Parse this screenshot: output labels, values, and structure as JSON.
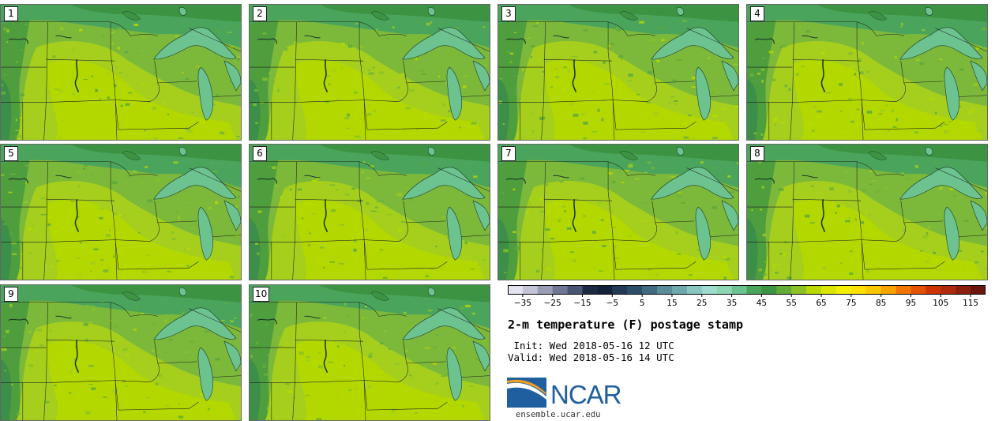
{
  "panels": [
    {
      "label": "1"
    },
    {
      "label": "2"
    },
    {
      "label": "3"
    },
    {
      "label": "4"
    },
    {
      "label": "5"
    },
    {
      "label": "6"
    },
    {
      "label": "7"
    },
    {
      "label": "8"
    },
    {
      "label": "9"
    },
    {
      "label": "10"
    }
  ],
  "colorbar": {
    "ticks": [
      -35,
      -25,
      -15,
      -5,
      5,
      15,
      25,
      35,
      45,
      55,
      65,
      75,
      85,
      95,
      105,
      115
    ],
    "colors": [
      "#e2e3ee",
      "#c2c4d6",
      "#9a9db6",
      "#707795",
      "#4b5675",
      "#1c2a44",
      "#14213a",
      "#223a54",
      "#2d4f6a",
      "#3f6a80",
      "#5a8c99",
      "#6fa7ad",
      "#89c6c2",
      "#9fdccf",
      "#8dd6b4",
      "#6cc390",
      "#4aa45c",
      "#3c9442",
      "#62ad38",
      "#8cc126",
      "#b9d900",
      "#d8e600",
      "#f2f000",
      "#fde100",
      "#fcc600",
      "#f9a300",
      "#f27700",
      "#e25200",
      "#cc3300",
      "#b02a10",
      "#8c1f10",
      "#6a160c"
    ],
    "min": -40,
    "step": 5
  },
  "title": "2-m temperature (F) postage stamp",
  "init_line": " Init: Wed 2018-05-16 12 UTC",
  "valid_line": "Valid: Wed 2018-05-16 14 UTC",
  "logo": {
    "name": "NCAR",
    "url": "ensemble.ucar.edu"
  }
}
